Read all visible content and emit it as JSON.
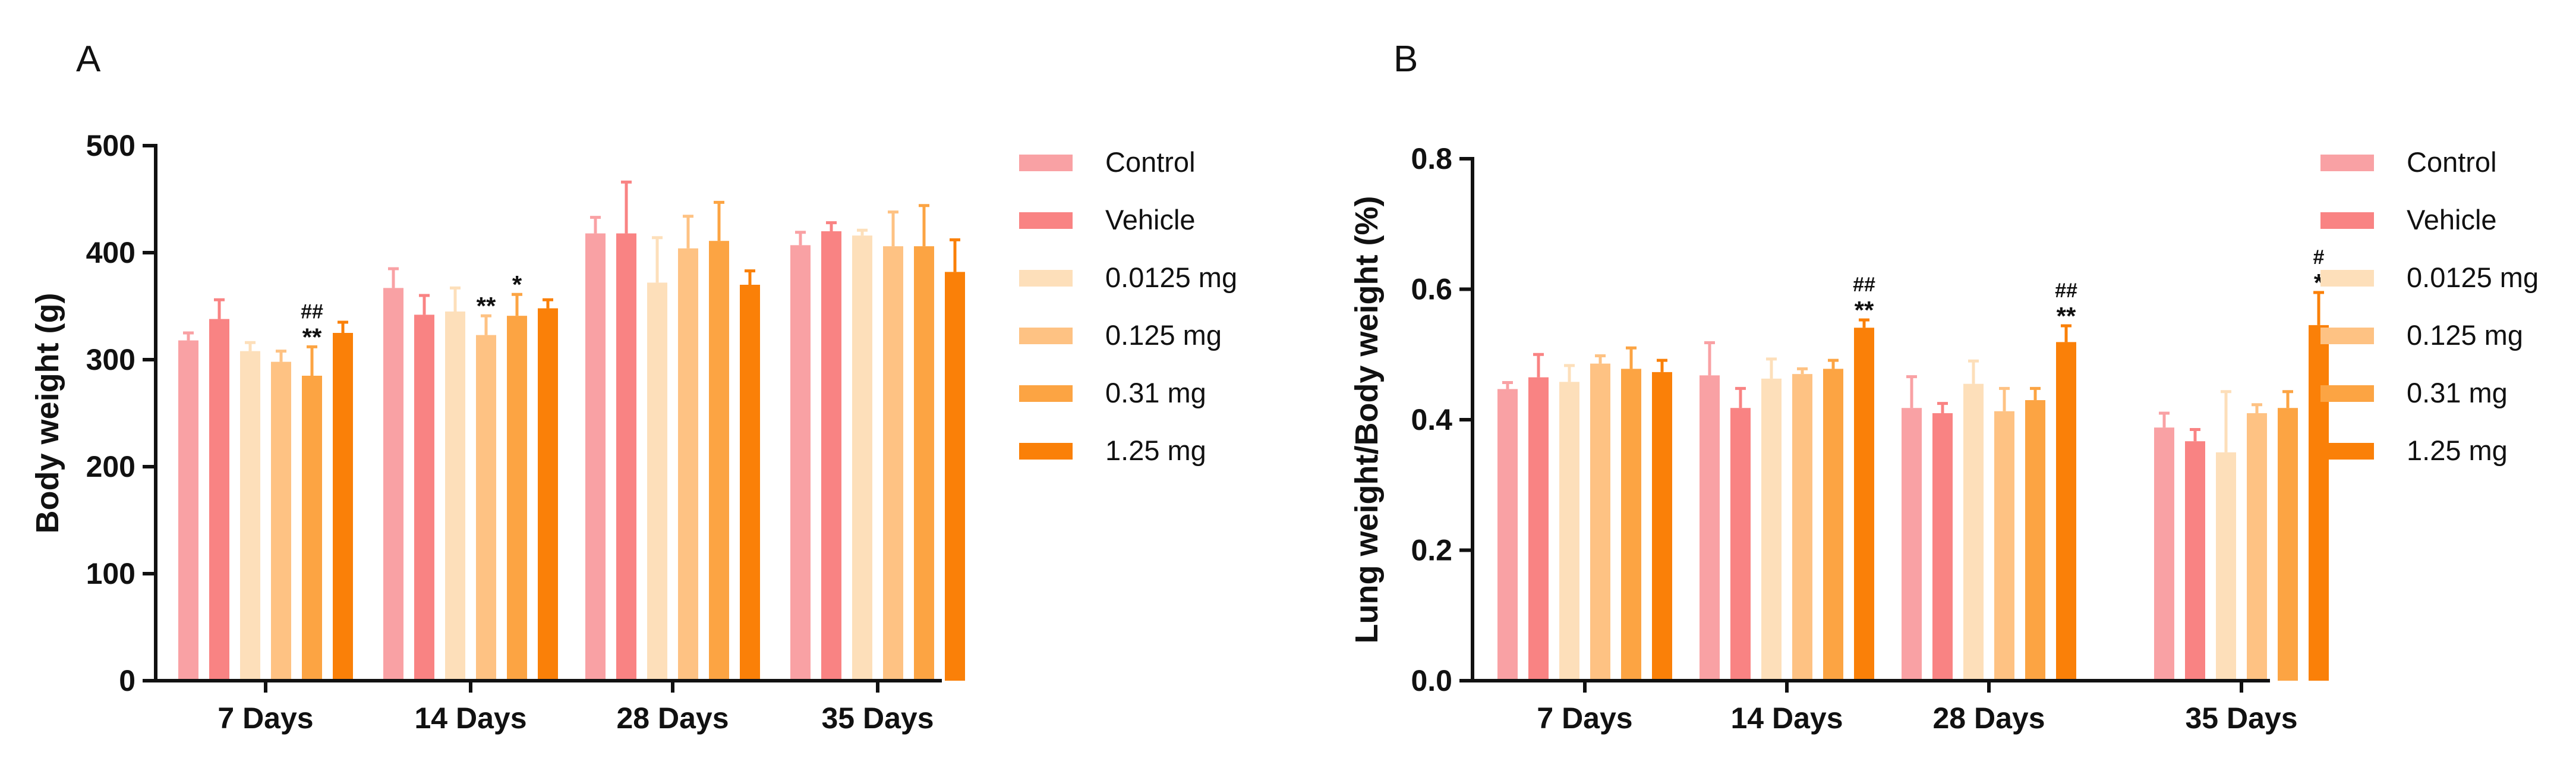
{
  "colors": {
    "Control": "#f9a1a4",
    "Vehicle": "#f98383",
    "0.0125 mg": "#fddfba",
    "0.125 mg": "#fec283",
    "0.31 mg": "#fca443",
    "1.25 mg": "#fa8008"
  },
  "chart_data": [
    {
      "panel": "A",
      "type": "bar",
      "ylabel": "Body weight (g)",
      "xlabel": "",
      "ylim": [
        0,
        500
      ],
      "yticks": [
        0,
        100,
        200,
        300,
        400,
        500
      ],
      "categories": [
        "7 Days",
        "14 Days",
        "28 Days",
        "35 Days"
      ],
      "series": [
        {
          "name": "Control",
          "values": [
            318,
            367,
            418,
            407
          ],
          "errors": [
            7,
            18,
            15,
            12
          ]
        },
        {
          "name": "Vehicle",
          "values": [
            338,
            342,
            418,
            420
          ],
          "errors": [
            18,
            18,
            48,
            8
          ]
        },
        {
          "name": "0.0125 mg",
          "values": [
            308,
            345,
            372,
            416
          ],
          "errors": [
            8,
            22,
            42,
            5
          ]
        },
        {
          "name": "0.125 mg",
          "values": [
            298,
            323,
            404,
            406
          ],
          "errors": [
            10,
            18,
            30,
            32
          ]
        },
        {
          "name": "0.31 mg",
          "values": [
            285,
            341,
            411,
            406
          ],
          "errors": [
            27,
            20,
            36,
            38
          ]
        },
        {
          "name": "1.25 mg",
          "values": [
            325,
            348,
            370,
            382
          ],
          "errors": [
            10,
            8,
            13,
            30
          ]
        }
      ],
      "annotations": [
        {
          "category": "7 Days",
          "series": "0.31 mg",
          "lines": [
            "##",
            "**"
          ]
        },
        {
          "category": "14 Days",
          "series": "0.125 mg",
          "lines": [
            "**"
          ]
        },
        {
          "category": "14 Days",
          "series": "0.31 mg",
          "lines": [
            "*"
          ]
        }
      ]
    },
    {
      "panel": "B",
      "type": "bar",
      "ylabel": "Lung weight/Body weight (%)",
      "xlabel": "",
      "ylim": [
        0,
        0.8
      ],
      "yticks": [
        0.0,
        0.2,
        0.4,
        0.6,
        0.8
      ],
      "tick_labels": [
        "0.0",
        "0.2",
        "0.4",
        "0.6",
        "0.8"
      ],
      "categories": [
        "7 Days",
        "14 Days",
        "28 Days",
        "35 Days"
      ],
      "series": [
        {
          "name": "Control",
          "values": [
            0.447,
            0.468,
            0.418,
            0.388
          ],
          "errors": [
            0.01,
            0.05,
            0.048,
            0.022
          ]
        },
        {
          "name": "Vehicle",
          "values": [
            0.465,
            0.418,
            0.41,
            0.367
          ],
          "errors": [
            0.035,
            0.03,
            0.015,
            0.018
          ]
        },
        {
          "name": "0.0125 mg",
          "values": [
            0.458,
            0.463,
            0.455,
            0.35
          ],
          "errors": [
            0.025,
            0.03,
            0.035,
            0.093
          ]
        },
        {
          "name": "0.125 mg",
          "values": [
            0.486,
            0.47,
            0.413,
            0.41
          ],
          "errors": [
            0.012,
            0.008,
            0.035,
            0.013
          ]
        },
        {
          "name": "0.31 mg",
          "values": [
            0.478,
            0.478,
            0.43,
            0.418
          ],
          "errors": [
            0.032,
            0.013,
            0.018,
            0.025
          ]
        },
        {
          "name": "1.25 mg",
          "values": [
            0.473,
            0.541,
            0.519,
            0.545
          ],
          "errors": [
            0.018,
            0.012,
            0.025,
            0.05
          ]
        }
      ],
      "annotations": [
        {
          "category": "14 Days",
          "series": "1.25 mg",
          "lines": [
            "##",
            "**"
          ]
        },
        {
          "category": "28 Days",
          "series": "1.25 mg",
          "lines": [
            "##",
            "**"
          ]
        },
        {
          "category": "35 Days",
          "series": "1.25 mg",
          "lines": [
            "#",
            "*"
          ]
        }
      ]
    }
  ],
  "legend": [
    "Control",
    "Vehicle",
    "0.0125 mg",
    "0.125 mg",
    "0.31 mg",
    "1.25 mg"
  ]
}
